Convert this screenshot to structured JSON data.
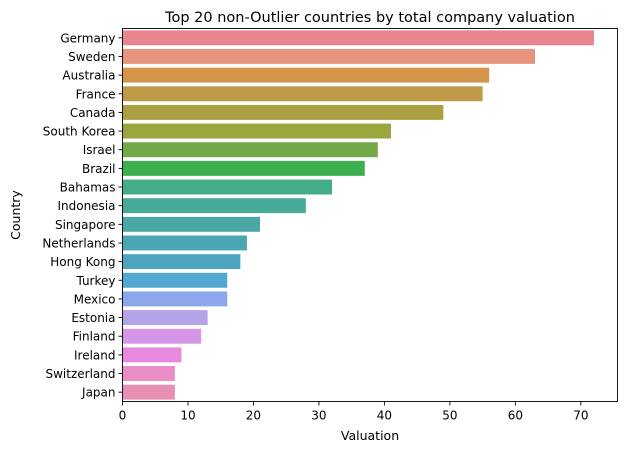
{
  "chart_data": {
    "type": "bar",
    "orientation": "horizontal",
    "title": "Top 20 non-Outlier countries by total company valuation",
    "xlabel": "Valuation",
    "ylabel": "Country",
    "xlim": [
      0,
      75.6
    ],
    "xticks": [
      "0",
      "10",
      "20",
      "30",
      "40",
      "50",
      "60",
      "70"
    ],
    "grid": false,
    "categories": [
      "Germany",
      "Sweden",
      "Australia",
      "France",
      "Canada",
      "South Korea",
      "Israel",
      "Brazil",
      "Bahamas",
      "Indonesia",
      "Singapore",
      "Netherlands",
      "Hong Kong",
      "Turkey",
      "Mexico",
      "Estonia",
      "Finland",
      "Ireland",
      "Switzerland",
      "Japan"
    ],
    "values": [
      72,
      63,
      56,
      55,
      49,
      41,
      39,
      37,
      32,
      28,
      21,
      19,
      18,
      16,
      16,
      13,
      12,
      9,
      8,
      8
    ],
    "colors": [
      "#e8868f",
      "#e8957e",
      "#d6944a",
      "#be9a49",
      "#aba042",
      "#9aa63d",
      "#72aa47",
      "#3daf4c",
      "#45ad86",
      "#47aa99",
      "#49a8a6",
      "#4aa6b2",
      "#4ca5bd",
      "#54a7d2",
      "#8ca7ea",
      "#b3a4ea",
      "#d695e8",
      "#e889df",
      "#ea8dc6",
      "#e98fb3"
    ]
  }
}
